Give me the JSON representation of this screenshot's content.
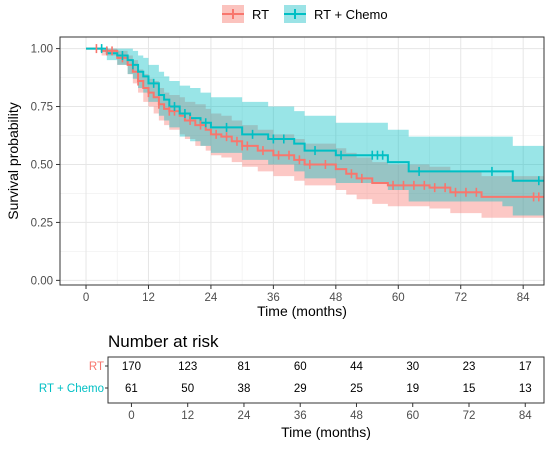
{
  "chart_data": [
    {
      "type": "line",
      "subtype": "kaplan-meier",
      "title": "",
      "xlabel": "Time (months)",
      "ylabel": "Survival probability",
      "xlim": [
        -5,
        88
      ],
      "ylim": [
        -0.02,
        1.05
      ],
      "x_ticks": [
        0,
        12,
        24,
        36,
        48,
        60,
        72,
        84
      ],
      "y_ticks": [
        0.0,
        0.25,
        0.5,
        0.75,
        1.0
      ],
      "y_tick_labels": [
        "0.00",
        "0.25",
        "0.50",
        "0.75",
        "1.00"
      ],
      "grid": true,
      "legend_position": "top",
      "series": [
        {
          "name": "RT",
          "color": "#F8766D",
          "band_color": "#F8766D",
          "x": [
            0,
            3,
            6,
            8,
            9,
            10,
            11,
            12,
            13,
            14,
            15,
            16,
            18,
            19,
            21,
            23,
            24,
            26,
            28,
            30,
            33,
            36,
            40,
            42,
            48,
            50,
            52,
            55,
            58,
            60,
            64,
            66,
            68,
            70,
            72,
            74,
            76,
            84,
            88
          ],
          "y": [
            1.0,
            0.99,
            0.96,
            0.93,
            0.9,
            0.86,
            0.83,
            0.81,
            0.79,
            0.76,
            0.74,
            0.73,
            0.71,
            0.69,
            0.67,
            0.65,
            0.63,
            0.62,
            0.6,
            0.58,
            0.56,
            0.54,
            0.52,
            0.5,
            0.48,
            0.46,
            0.44,
            0.42,
            0.41,
            0.41,
            0.41,
            0.4,
            0.4,
            0.38,
            0.38,
            0.38,
            0.36,
            0.36,
            0.36
          ],
          "lower": [
            1.0,
            0.97,
            0.93,
            0.89,
            0.85,
            0.81,
            0.77,
            0.75,
            0.72,
            0.69,
            0.67,
            0.65,
            0.63,
            0.61,
            0.58,
            0.56,
            0.54,
            0.53,
            0.51,
            0.49,
            0.47,
            0.45,
            0.43,
            0.41,
            0.39,
            0.37,
            0.35,
            0.33,
            0.32,
            0.32,
            0.32,
            0.31,
            0.31,
            0.29,
            0.29,
            0.29,
            0.27,
            0.27,
            0.27
          ],
          "upper": [
            1.0,
            1.0,
            0.99,
            0.97,
            0.95,
            0.91,
            0.89,
            0.87,
            0.86,
            0.83,
            0.81,
            0.8,
            0.79,
            0.77,
            0.76,
            0.74,
            0.72,
            0.71,
            0.69,
            0.67,
            0.65,
            0.63,
            0.61,
            0.59,
            0.57,
            0.55,
            0.53,
            0.51,
            0.5,
            0.5,
            0.5,
            0.49,
            0.49,
            0.47,
            0.47,
            0.47,
            0.45,
            0.45,
            0.45
          ],
          "censor_times": [
            2,
            4,
            5,
            7,
            10,
            12,
            14,
            16,
            17,
            20,
            22,
            25,
            27,
            29,
            30,
            31,
            34,
            37,
            39,
            41,
            43,
            46,
            51,
            53,
            59,
            61,
            63,
            65,
            67,
            69,
            71,
            73,
            75,
            86,
            87
          ]
        },
        {
          "name": "RT + Chemo",
          "color": "#00BFC4",
          "band_color": "#00BFC4",
          "x": [
            0,
            4,
            6,
            8,
            9,
            10,
            11,
            12,
            14,
            15,
            16,
            18,
            20,
            22,
            24,
            30,
            35,
            40,
            42,
            48,
            54,
            58,
            60,
            62,
            65,
            68,
            72,
            80,
            82,
            88
          ],
          "y": [
            1.0,
            0.98,
            0.97,
            0.95,
            0.93,
            0.9,
            0.88,
            0.85,
            0.8,
            0.78,
            0.75,
            0.72,
            0.7,
            0.68,
            0.66,
            0.63,
            0.61,
            0.59,
            0.56,
            0.54,
            0.54,
            0.51,
            0.51,
            0.47,
            0.47,
            0.47,
            0.47,
            0.47,
            0.43,
            0.43
          ],
          "lower": [
            1.0,
            0.95,
            0.93,
            0.89,
            0.87,
            0.83,
            0.81,
            0.77,
            0.71,
            0.69,
            0.66,
            0.62,
            0.6,
            0.58,
            0.55,
            0.52,
            0.5,
            0.47,
            0.44,
            0.42,
            0.42,
            0.39,
            0.39,
            0.34,
            0.34,
            0.34,
            0.34,
            0.32,
            0.28,
            0.28
          ],
          "upper": [
            1.0,
            1.0,
            1.0,
            1.0,
            0.99,
            0.97,
            0.96,
            0.93,
            0.9,
            0.88,
            0.86,
            0.84,
            0.83,
            0.81,
            0.79,
            0.77,
            0.75,
            0.73,
            0.71,
            0.68,
            0.68,
            0.65,
            0.65,
            0.62,
            0.62,
            0.62,
            0.62,
            0.62,
            0.58,
            0.58
          ],
          "censor_times": [
            3,
            7,
            9,
            13,
            17,
            19,
            23,
            27,
            32,
            36,
            38,
            44,
            49,
            55,
            56,
            57,
            64,
            78,
            87
          ]
        }
      ]
    },
    {
      "type": "table",
      "title": "Number at risk",
      "xlabel": "Time (months)",
      "x_ticks": [
        0,
        12,
        24,
        36,
        48,
        60,
        72,
        84
      ],
      "xlim": [
        -5,
        88
      ],
      "rows": [
        {
          "label": "RT",
          "color": "#F8766D",
          "values": [
            170,
            123,
            81,
            60,
            44,
            30,
            23,
            17
          ]
        },
        {
          "label": "RT + Chemo",
          "color": "#00BFC4",
          "values": [
            61,
            50,
            38,
            29,
            25,
            19,
            15,
            13
          ]
        }
      ]
    }
  ]
}
